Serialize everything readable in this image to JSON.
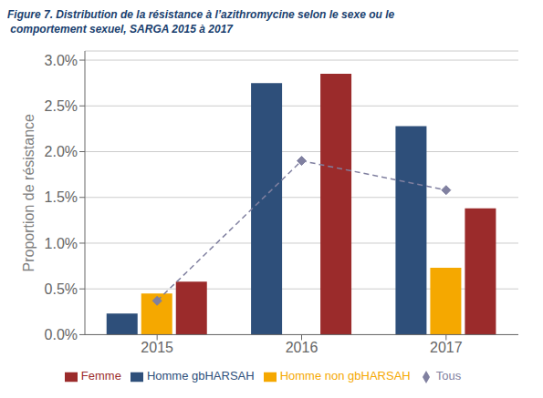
{
  "chart_data": {
    "type": "bar",
    "title": "Figure 7. Distribution de la résistance à l’azithromycine selon le sexe ou le\n comportement sexuel, SARGA 2015 à 2017",
    "categories": [
      "2015",
      "2016",
      "2017"
    ],
    "series": [
      {
        "name": "Homme gbHARSAH",
        "color": "#2E4F7A",
        "values": [
          0.0023,
          0.0275,
          0.0228
        ]
      },
      {
        "name": "Homme non gbHARSAH",
        "color": "#F5A800",
        "values": [
          0.0045,
          0.0,
          0.0073
        ]
      },
      {
        "name": "Femme",
        "color": "#9B2B2B",
        "values": [
          0.0058,
          0.0285,
          0.0138
        ]
      },
      {
        "name": "Tous",
        "type": "line",
        "color": "#8080A0",
        "marker": "diamond",
        "line_style": "dashed",
        "values": [
          0.0037,
          0.019,
          0.0158
        ]
      }
    ],
    "ylabel": "Proportion de résistance",
    "ylim": [
      0,
      0.031
    ],
    "yticks": [
      {
        "value": 0.0,
        "label": "0.0%"
      },
      {
        "value": 0.005,
        "label": "0.5%"
      },
      {
        "value": 0.01,
        "label": "1.0%"
      },
      {
        "value": 0.015,
        "label": "1.5%"
      },
      {
        "value": 0.02,
        "label": "2.0%"
      },
      {
        "value": 0.025,
        "label": "2.5%"
      },
      {
        "value": 0.03,
        "label": "3.0%"
      }
    ],
    "grid": true,
    "legend": "bottom"
  }
}
